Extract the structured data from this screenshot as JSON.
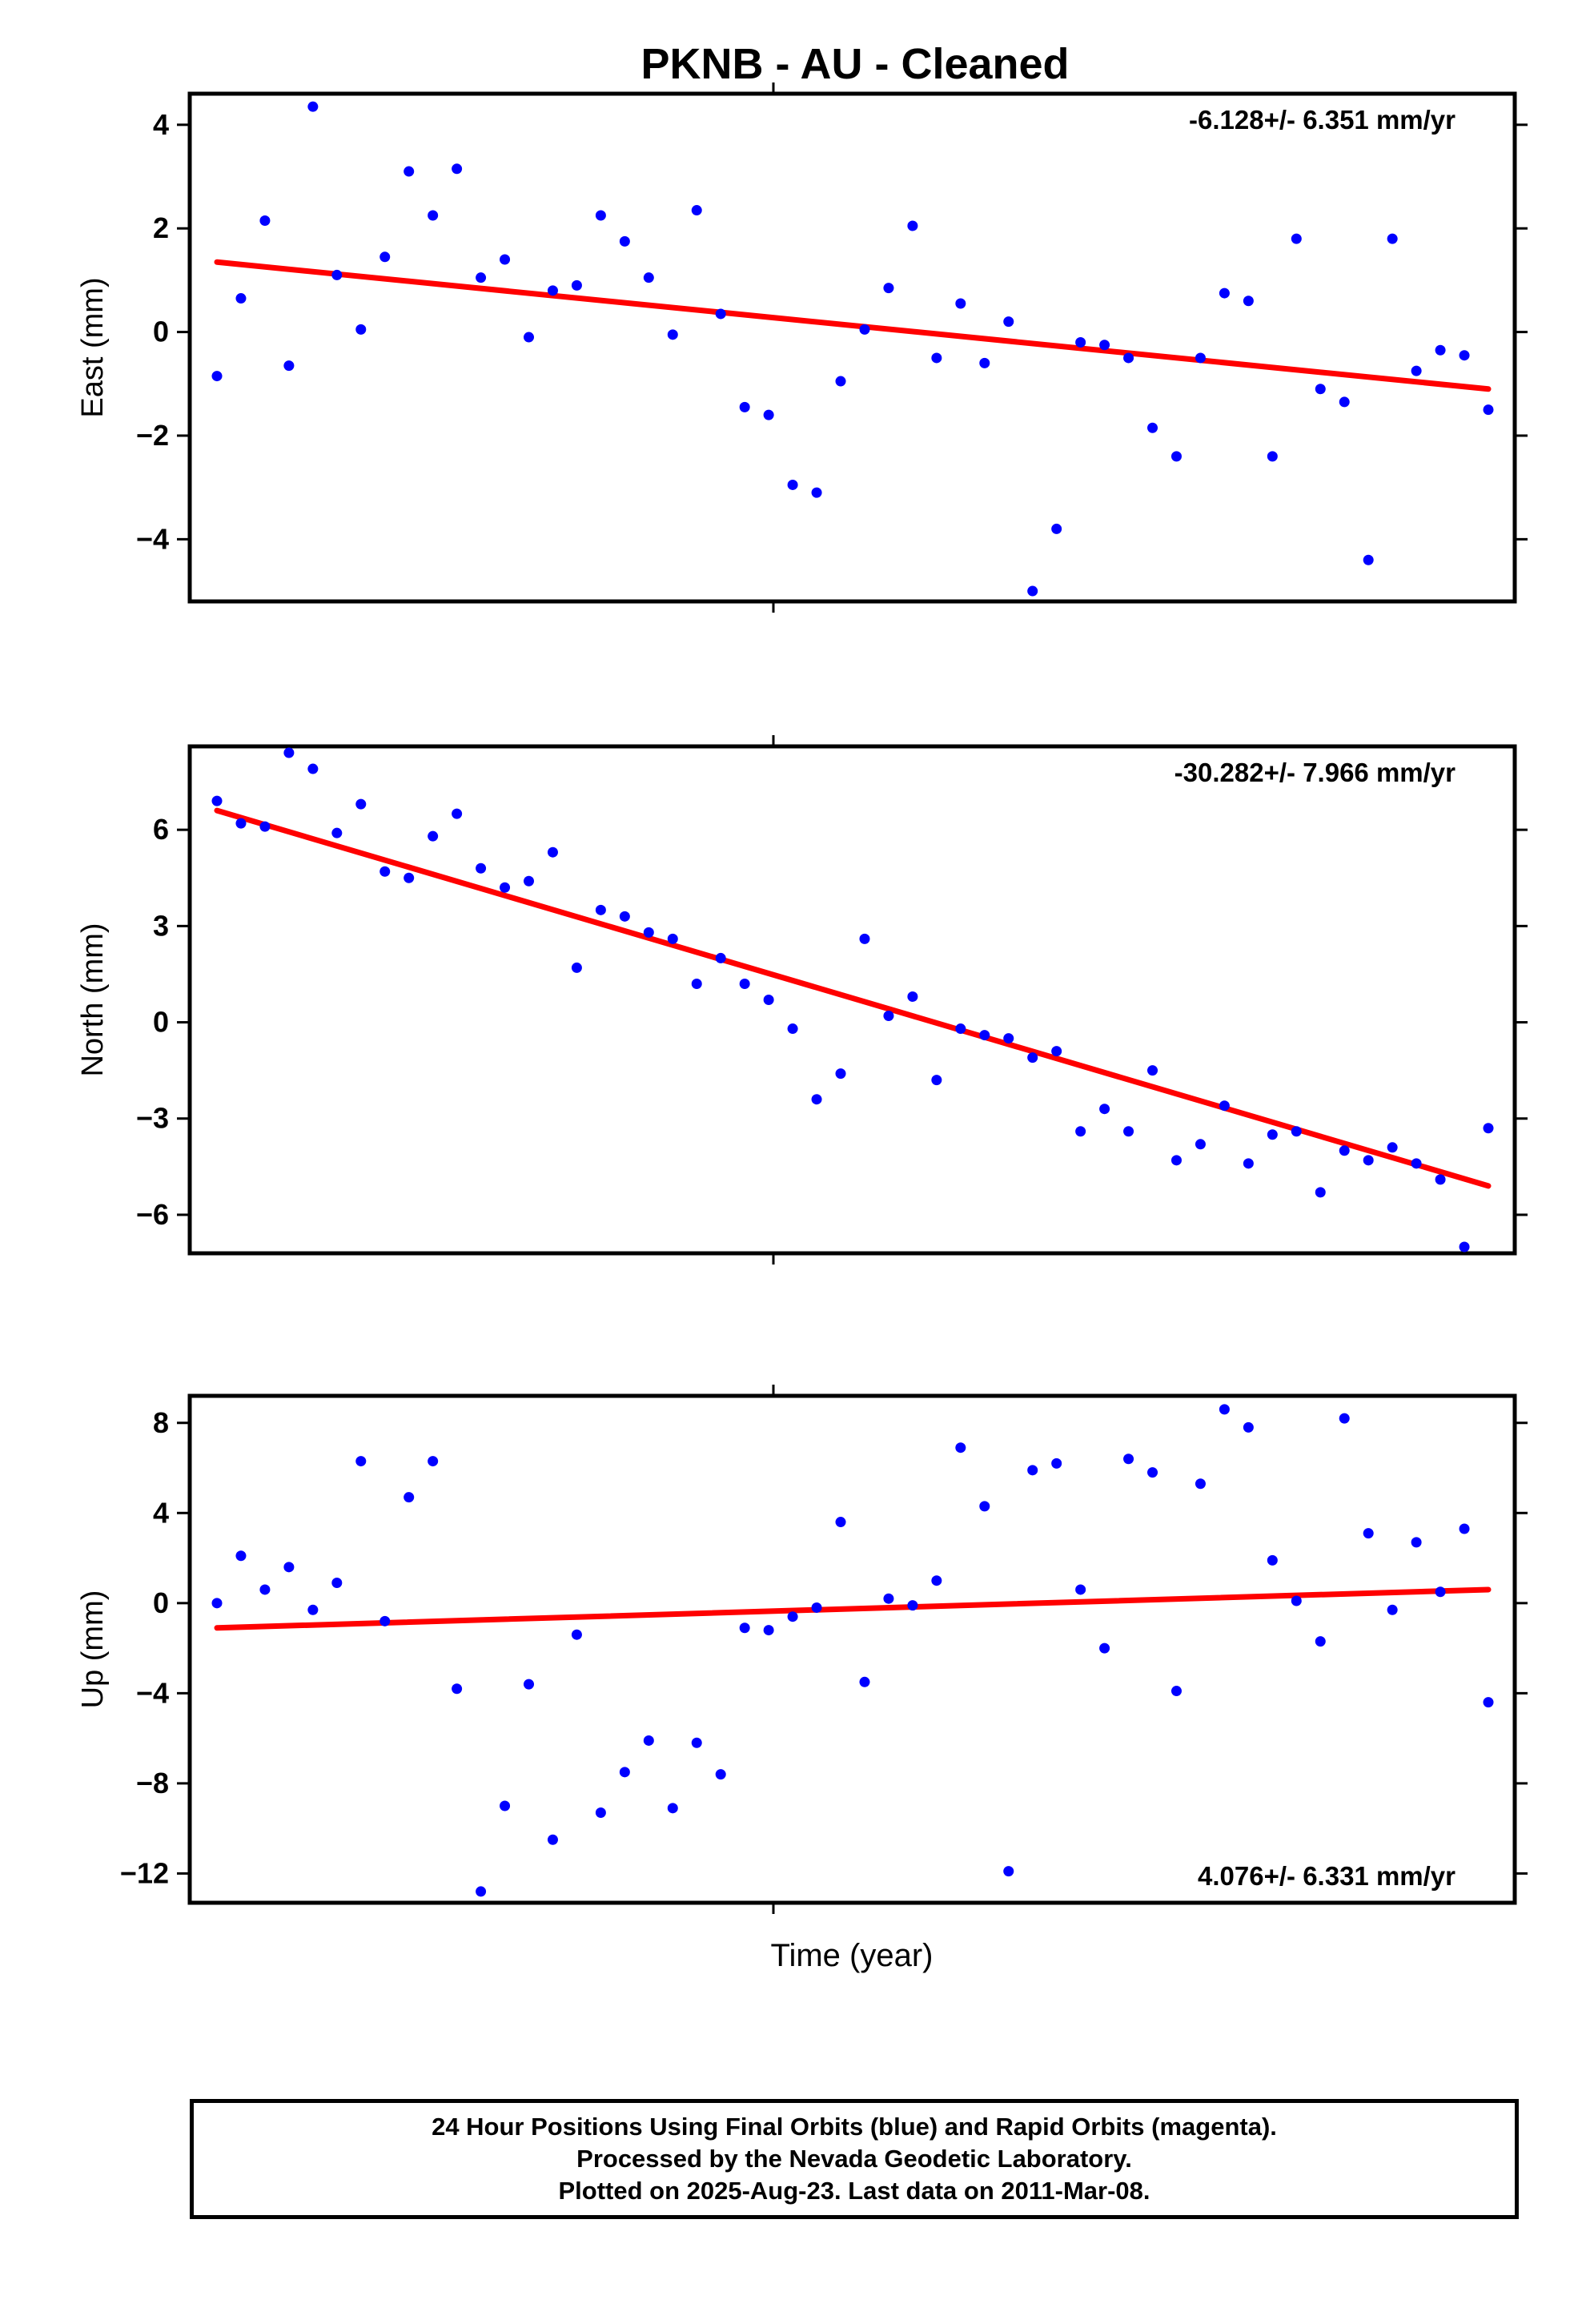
{
  "page_title": "PKNB  - AU - Cleaned",
  "colors": {
    "points": "#0000ff",
    "trend": "#ff0000",
    "frame": "#000000"
  },
  "chart_data": [
    {
      "type": "scatter",
      "ylabel": "East (mm)",
      "xlabel": "",
      "ylim": [
        -5.2,
        4.6
      ],
      "yticks": [
        4,
        2,
        0,
        -2,
        -4
      ],
      "annotation": "-6.128+/- 6.351 mm/yr",
      "trend": [
        1.35,
        -1.1
      ],
      "values": [
        -0.85,
        0.65,
        2.15,
        -0.65,
        4.35,
        1.1,
        0.05,
        1.45,
        3.1,
        2.25,
        3.15,
        1.05,
        1.4,
        -0.1,
        0.8,
        0.9,
        2.25,
        1.75,
        1.05,
        -0.05,
        2.35,
        0.35,
        -1.45,
        -1.6,
        -2.95,
        -3.1,
        -0.95,
        0.05,
        0.85,
        2.05,
        -0.5,
        0.55,
        -0.6,
        0.2,
        -5.0,
        -3.8,
        -0.2,
        -0.25,
        -0.5,
        -1.85,
        -2.4,
        -0.5,
        0.75,
        0.6,
        -2.4,
        1.8,
        -1.1,
        -1.35,
        -4.4,
        1.8,
        -0.75,
        -0.35,
        -0.45,
        -1.5
      ]
    },
    {
      "type": "scatter",
      "ylabel": "North (mm)",
      "xlabel": "",
      "ylim": [
        -7.2,
        8.6
      ],
      "yticks": [
        6,
        3,
        0,
        -3,
        -6
      ],
      "annotation": "-30.282+/- 7.966 mm/yr",
      "trend": [
        6.6,
        -5.1
      ],
      "values": [
        6.9,
        6.2,
        6.1,
        8.4,
        7.9,
        5.9,
        6.8,
        4.7,
        4.5,
        5.8,
        6.5,
        4.8,
        4.2,
        4.4,
        5.3,
        1.7,
        3.5,
        3.3,
        2.8,
        2.6,
        1.2,
        2.0,
        1.2,
        0.7,
        -0.2,
        -2.4,
        -1.6,
        2.6,
        0.2,
        0.8,
        -1.8,
        -0.2,
        -0.4,
        -0.5,
        -1.1,
        -0.9,
        -3.4,
        -2.7,
        -3.4,
        -1.5,
        -4.3,
        -3.8,
        -2.6,
        -4.4,
        -3.5,
        -3.4,
        -5.3,
        -4.0,
        -4.3,
        -3.9,
        -4.4,
        -4.9,
        -7.0,
        -3.3
      ]
    },
    {
      "type": "scatter",
      "ylabel": "Up (mm)",
      "xlabel": "Time (year)",
      "ylim": [
        -13.3,
        9.2
      ],
      "yticks": [
        8,
        4,
        0,
        -4,
        -8,
        -12
      ],
      "annotation": "4.076+/- 6.331 mm/yr",
      "trend": [
        -1.1,
        0.6
      ],
      "values": [
        0.0,
        2.1,
        0.6,
        1.6,
        -0.3,
        0.9,
        6.3,
        -0.8,
        4.7,
        6.3,
        -3.8,
        -12.8,
        -9.0,
        -3.6,
        -10.5,
        -1.4,
        -9.3,
        -7.5,
        -6.1,
        -9.1,
        -6.2,
        -7.6,
        -1.1,
        -1.2,
        -0.6,
        -0.2,
        3.6,
        -3.5,
        0.2,
        -0.1,
        1.0,
        6.9,
        4.3,
        -11.9,
        5.9,
        6.2,
        0.6,
        -2.0,
        6.4,
        5.8,
        -3.9,
        5.3,
        8.6,
        7.8,
        1.9,
        0.1,
        -1.7,
        8.2,
        3.1,
        -0.3,
        2.7,
        0.5,
        3.3,
        -4.4
      ]
    }
  ],
  "footer": {
    "line1": "24 Hour Positions Using Final Orbits (blue) and Rapid Orbits (magenta).",
    "line2": "Processed by the Nevada Geodetic Laboratory.",
    "line3": "Plotted on 2025-Aug-23. Last data on 2011-Mar-08."
  }
}
